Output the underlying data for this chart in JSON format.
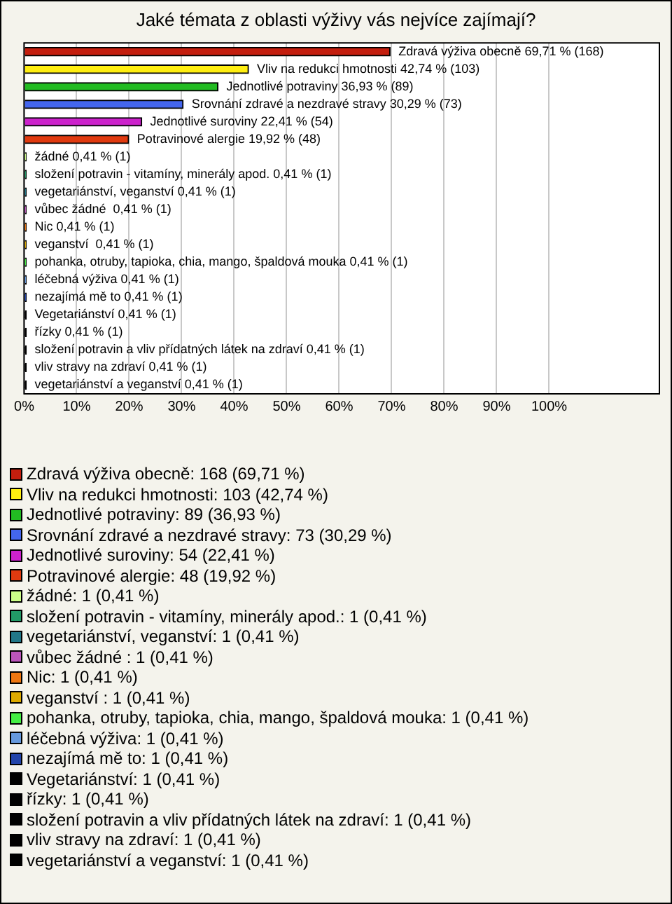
{
  "chart_data": {
    "type": "bar",
    "orientation": "horizontal",
    "title": "Jaké témata z oblasti výživy vás nejvíce zajímají?",
    "categories": [
      "Zdravá výživa obecně",
      "Vliv na redukci hmotnosti",
      "Jednotlivé potraviny",
      "Srovnání zdravé a nezdravé stravy",
      "Jednotlivé suroviny",
      "Potravinové alergie",
      "žádné",
      "složení potravin - vitamíny, minerály apod.",
      "vegetariánství, veganství",
      "vůbec žádné ",
      "Nic",
      "veganství ",
      "pohanka, otruby, tapioka, chia, mango, špaldová mouka",
      "léčebná výživa",
      "nezajímá mě to",
      "Vegetariánství",
      "řízky",
      "složení potravin a vliv přídatných látek na zdraví",
      "vliv stravy na zdraví",
      "vegetariánství a veganství"
    ],
    "values": [
      69.71,
      42.74,
      36.93,
      30.29,
      22.41,
      19.92,
      0.41,
      0.41,
      0.41,
      0.41,
      0.41,
      0.41,
      0.41,
      0.41,
      0.41,
      0.41,
      0.41,
      0.41,
      0.41,
      0.41
    ],
    "colors": [
      "#c41e0e",
      "#ffee11",
      "#22bb22",
      "#4466ee",
      "#cc22cc",
      "#e03a10",
      "#ccff88",
      "#229966",
      "#227788",
      "#bb55bb",
      "#ee7711",
      "#ddaa00",
      "#44ee44",
      "#6699dd",
      "#2244aa",
      "#000000",
      "#000000",
      "#000000",
      "#000000",
      "#000000"
    ],
    "value_labels": [
      "69,71 % (168)",
      "42,74 % (103)",
      "36,93 % (89)",
      "30,29 % (73)",
      "22,41 % (54)",
      "19,92 % (48)",
      "0,41 % (1)",
      "0,41 % (1)",
      "0,41 % (1)",
      "0,41 % (1)",
      "0,41 % (1)",
      "0,41 % (1)",
      "0,41 % (1)",
      "0,41 % (1)",
      "0,41 % (1)",
      "0,41 % (1)",
      "0,41 % (1)",
      "0,41 % (1)",
      "0,41 % (1)",
      "0,41 % (1)"
    ],
    "xlim": [
      0,
      121
    ],
    "xticks": [
      {
        "value": 0,
        "label": "0%"
      },
      {
        "value": 10,
        "label": "10%"
      },
      {
        "value": 20,
        "label": "20%"
      },
      {
        "value": 30,
        "label": "30%"
      },
      {
        "value": 40,
        "label": "40%"
      },
      {
        "value": 50,
        "label": "50%"
      },
      {
        "value": 60,
        "label": "60%"
      },
      {
        "value": 70,
        "label": "70%"
      },
      {
        "value": 80,
        "label": "80%"
      },
      {
        "value": 90,
        "label": "90%"
      },
      {
        "value": 100,
        "label": "100%"
      }
    ],
    "grid": "x",
    "tick_labels": "x",
    "annotations": [
      "Zdravá výživa obecně: 168 (69,71 %)",
      "Vliv na redukci hmotnosti: 103 (42,74 %)",
      "Jednotlivé potraviny: 89 (36,93 %)",
      "Srovnání zdravé a nezdravé stravy: 73 (30,29 %)",
      "Jednotlivé suroviny: 54 (22,41 %)",
      "Potravinové alergie: 48 (19,92 %)",
      "žádné: 1 (0,41 %)",
      "složení potravin - vitamíny, minerály apod.: 1 (0,41 %)",
      "vegetariánství, veganství: 1 (0,41 %)",
      "vůbec žádné : 1 (0,41 %)",
      "Nic: 1 (0,41 %)",
      "veganství : 1 (0,41 %)",
      "pohanka, otruby, tapioka, chia, mango, špaldová mouka: 1 (0,41 %)",
      "léčebná výživa: 1 (0,41 %)",
      "nezajímá mě to: 1 (0,41 %)",
      "Vegetariánství: 1 (0,41 %)",
      "řízky: 1 (0,41 %)",
      "složení potravin a vliv přídatných látek na zdraví: 1 (0,41 %)",
      "vliv stravy na zdraví: 1 (0,41 %)",
      "vegetariánství a veganství: 1 (0,41 %)"
    ]
  }
}
